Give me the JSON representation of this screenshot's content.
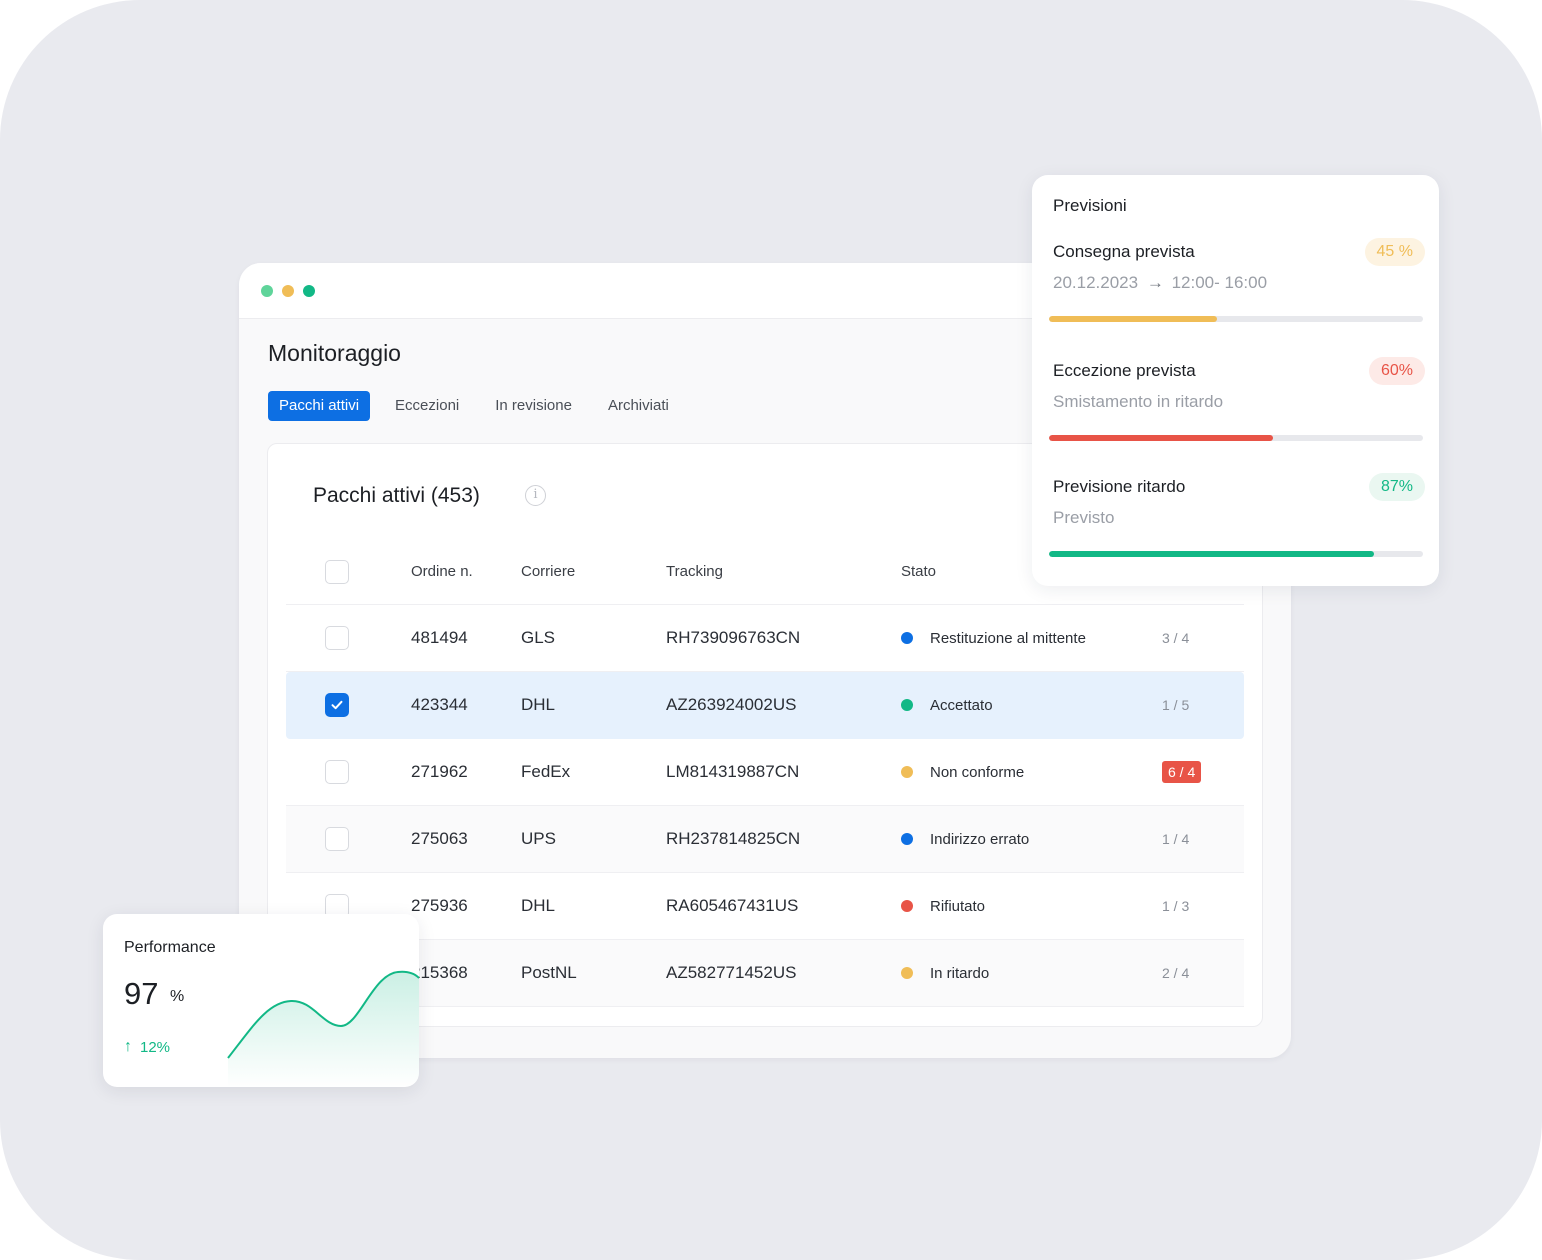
{
  "window": {
    "dots": [
      "#5fd49a",
      "#f0bd57",
      "#12b886"
    ]
  },
  "page": {
    "title": "Monitoraggio",
    "tabs": [
      {
        "label": "Pacchi attivi",
        "active": true
      },
      {
        "label": "Eccezioni",
        "active": false
      },
      {
        "label": "In revisione",
        "active": false
      },
      {
        "label": "Archiviati",
        "active": false
      }
    ]
  },
  "table": {
    "title": "Pacchi attivi (453)",
    "columns": {
      "order": "Ordine n.",
      "carrier": "Corriere",
      "tracking": "Tracking",
      "status": "Stato"
    },
    "rows": [
      {
        "order": "481494",
        "carrier": "GLS",
        "tracking": "RH739096763CN",
        "status": "Restituzione al mittente",
        "status_color": "#0d6fe3",
        "count": "3 / 4",
        "count_alert": false,
        "selected": false,
        "alt": false
      },
      {
        "order": "423344",
        "carrier": "DHL",
        "tracking": "AZ263924002US",
        "status": "Accettato",
        "status_color": "#12b886",
        "count": "1 / 5",
        "count_alert": false,
        "selected": true,
        "alt": false
      },
      {
        "order": "271962",
        "carrier": "FedEx",
        "tracking": "LM814319887CN",
        "status": "Non conforme",
        "status_color": "#f0bd57",
        "count": "6 / 4",
        "count_alert": true,
        "selected": false,
        "alt": false
      },
      {
        "order": "275063",
        "carrier": "UPS",
        "tracking": "RH237814825CN",
        "status": "Indirizzo errato",
        "status_color": "#0d6fe3",
        "count": "1 / 4",
        "count_alert": false,
        "selected": false,
        "alt": true
      },
      {
        "order": "275936",
        "carrier": "DHL",
        "tracking": "RA605467431US",
        "status": "Rifiutato",
        "status_color": "#e85447",
        "count": "1 / 3",
        "count_alert": false,
        "selected": false,
        "alt": false
      },
      {
        "order": "215368",
        "carrier": "PostNL",
        "tracking": "AZ582771452US",
        "status": "In ritardo",
        "status_color": "#f0bd57",
        "count": "2 / 4",
        "count_alert": false,
        "selected": false,
        "alt": true
      }
    ]
  },
  "forecast": {
    "title": "Previsioni",
    "items": [
      {
        "label": "Consegna prevista",
        "detail_date": "20.12.2023",
        "detail_time": "12:00- 16:00",
        "badge": "45 %",
        "value": 0.45,
        "color": "#f0bd57",
        "badge_bg": "#fdf3e1"
      },
      {
        "label": "Eccezione prevista",
        "detail": "Smistamento in ritardo",
        "badge": "60%",
        "value": 0.6,
        "color": "#e85447",
        "badge_bg": "#fdeae7"
      },
      {
        "label": "Previsione ritardo",
        "detail": "Previsto",
        "badge": "87%",
        "value": 0.87,
        "color": "#12b886",
        "badge_bg": "#eaf7f1"
      }
    ]
  },
  "performance": {
    "title": "Performance",
    "value": "97",
    "unit": "%",
    "trend": "12%",
    "line_color": "#12b886"
  }
}
